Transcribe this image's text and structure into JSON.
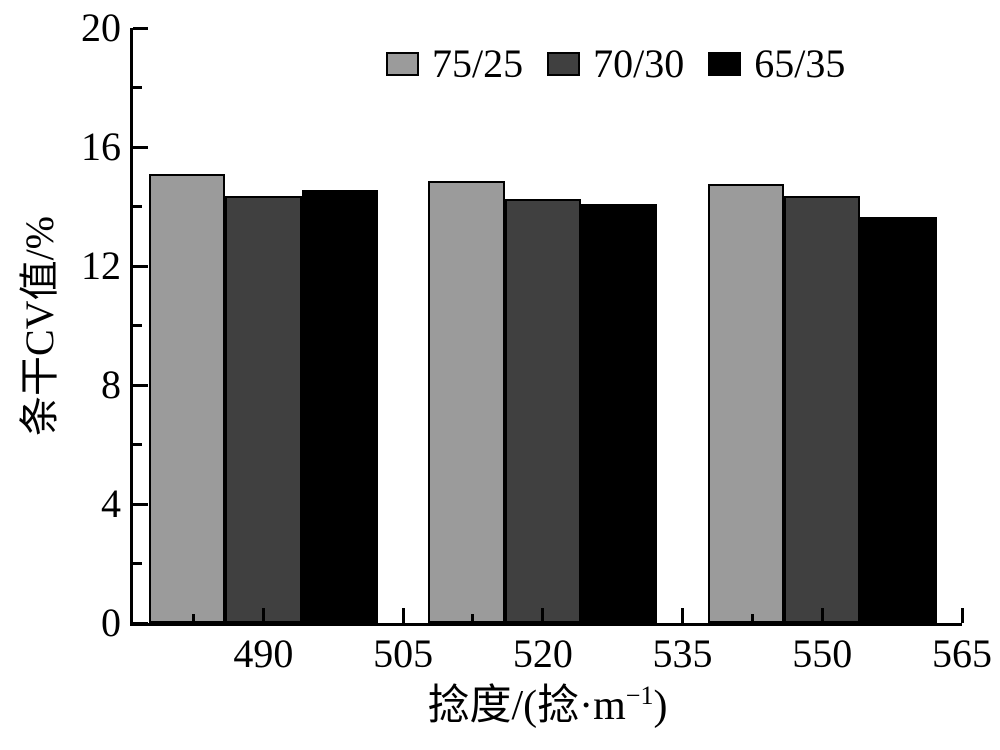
{
  "chart_data": {
    "type": "bar",
    "title": "",
    "xlabel": "捻度/(捻·m⁻¹)",
    "ylabel": "条干CV值/%",
    "categories": [
      490,
      520,
      550
    ],
    "series": [
      {
        "name": "75/25",
        "color": "#9b9b9b",
        "values": [
          15.1,
          14.85,
          14.75
        ]
      },
      {
        "name": "70/30",
        "color": "#404040",
        "values": [
          14.35,
          14.25,
          14.35
        ]
      },
      {
        "name": "65/35",
        "color": "#000000",
        "values": [
          14.55,
          14.1,
          13.65
        ]
      }
    ],
    "xlim": [
      476,
      565
    ],
    "ylim": [
      0,
      20
    ],
    "x_major_ticks": [
      490,
      505,
      520,
      535,
      550,
      565
    ],
    "x_minor_ticks": [
      482.5,
      497.5,
      512.5,
      527.5,
      542.5,
      557.5
    ],
    "y_major_ticks": [
      0,
      4,
      8,
      12,
      16,
      20
    ],
    "y_minor_ticks": [
      2,
      6,
      10,
      14,
      18
    ],
    "bar_width_units": 8.2,
    "legend_position": "top-center",
    "grid": false,
    "axis_color": "#000000",
    "bar_border_color": "#000000",
    "background_color": "#ffffff"
  },
  "labels": {
    "xlabel_prefix": "捻度/(捻·m",
    "xlabel_sup": "−1",
    "xlabel_suffix": ")",
    "ylabel": "条干CV值/%"
  }
}
